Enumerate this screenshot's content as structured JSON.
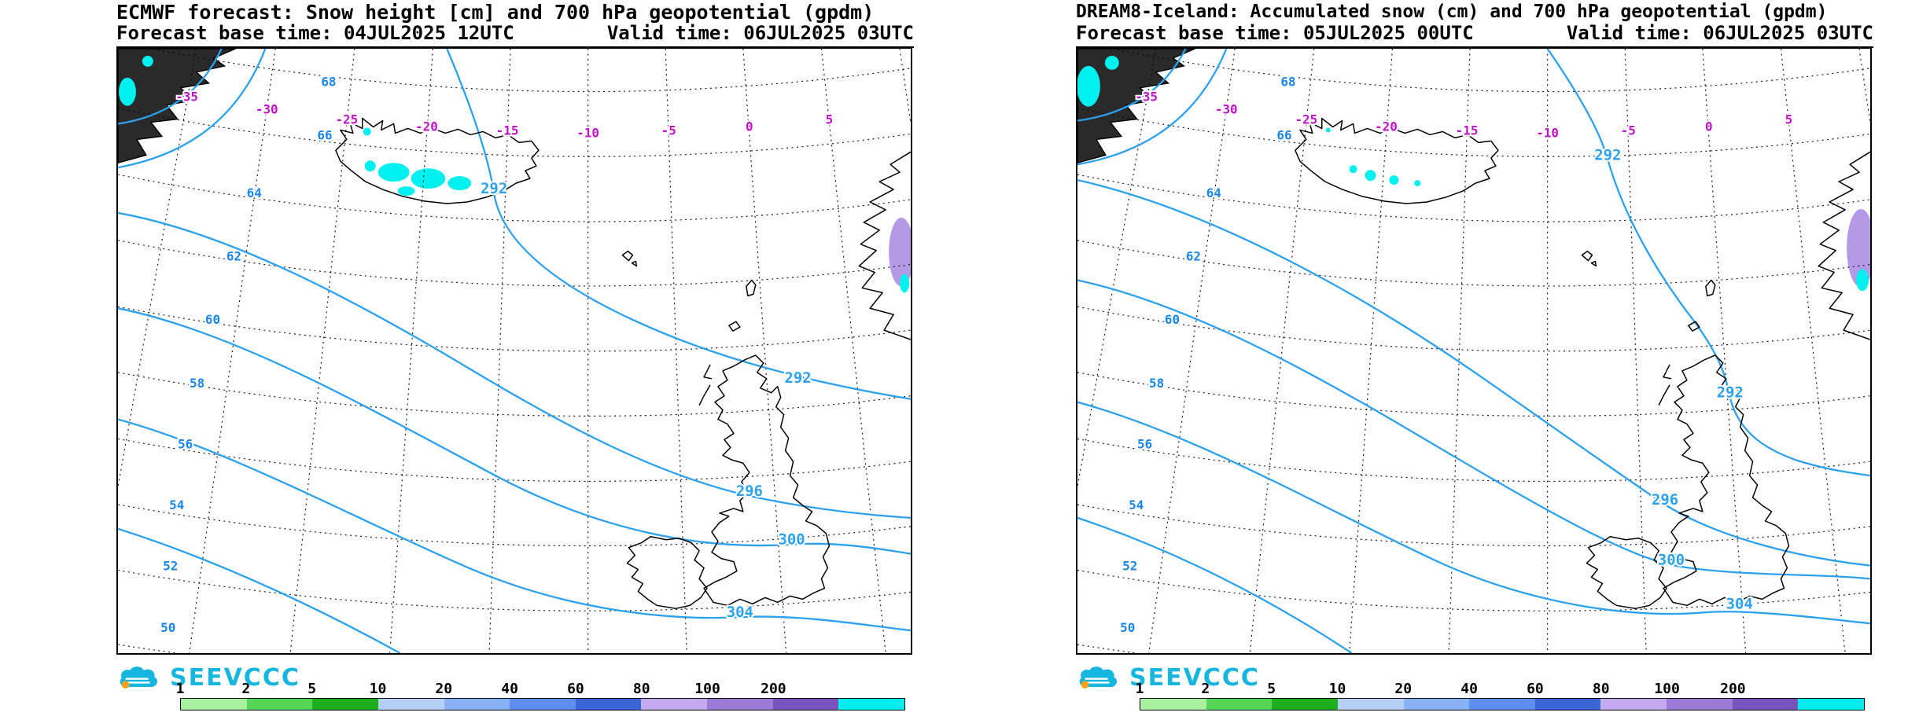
{
  "panels": [
    {
      "title": "ECMWF forecast: Snow height [cm] and 700 hPa geopotential (gpdm)",
      "base_time": "Forecast base time: 04JUL2025 12UTC",
      "valid_time": "Valid time: 06JUL2025 03UTC",
      "contour_labels": [
        "292",
        "292",
        "296",
        "300",
        "304"
      ]
    },
    {
      "title": "DREAM8-Iceland: Accumulated snow (cm) and 700 hPa geopotential (gpdm)",
      "base_time": "Forecast base time: 05JUL2025 00UTC",
      "valid_time": "Valid time: 06JUL2025 03UTC",
      "contour_labels": [
        "292",
        "292",
        "296",
        "300",
        "304"
      ]
    }
  ],
  "map_labels": {
    "latitudes": [
      "68",
      "66",
      "64",
      "62",
      "60",
      "58",
      "56",
      "54",
      "52",
      "50"
    ],
    "longitudes": [
      "-35",
      "-30",
      "-25",
      "-20",
      "-15",
      "-10",
      "-5",
      "0",
      "5"
    ]
  },
  "colorbar": {
    "values": [
      "1",
      "2",
      "5",
      "10",
      "20",
      "40",
      "60",
      "80",
      "100",
      "200"
    ],
    "colors": [
      "#a8f0a0",
      "#56d656",
      "#1fae1f",
      "#b4d0f8",
      "#88b2f2",
      "#5c90ec",
      "#3a66d8",
      "#c4aaec",
      "#9c7ad8",
      "#7a54bc",
      "#00eeee"
    ]
  },
  "logo": {
    "text": "SEEVCCC"
  },
  "colors": {
    "contour_blue": "#2ba1ef",
    "lat_blue": "#1a86e8",
    "lon_magenta": "#c012c8",
    "snow_cyan": "#00f0f0",
    "snow_purple": "#b49ae6",
    "logo_cyan": "#17b6de",
    "sun_orange": "#f6a21d",
    "land_dark": "#2a2a2a"
  }
}
